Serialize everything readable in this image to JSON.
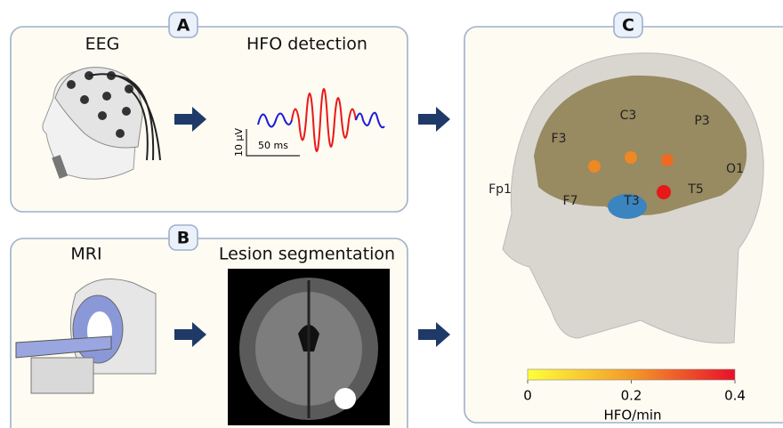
{
  "panel_a": {
    "label": "A",
    "eeg_title": "EEG",
    "hfo_title": "HFO detection",
    "scale_amplitude": "10 µV",
    "scale_time": "50 ms"
  },
  "panel_b": {
    "label": "B",
    "mri_title": "MRI",
    "lesion_title": "Lesion segmentation"
  },
  "panel_c": {
    "label": "C",
    "electrodes": [
      "C3",
      "P3",
      "F3",
      "O1",
      "Fp1",
      "F7",
      "T3",
      "T5"
    ],
    "colorbar": {
      "lim": [
        0,
        0.4
      ],
      "ticks": [
        0,
        0.2,
        0.4
      ],
      "label": "HFO/min"
    }
  }
}
